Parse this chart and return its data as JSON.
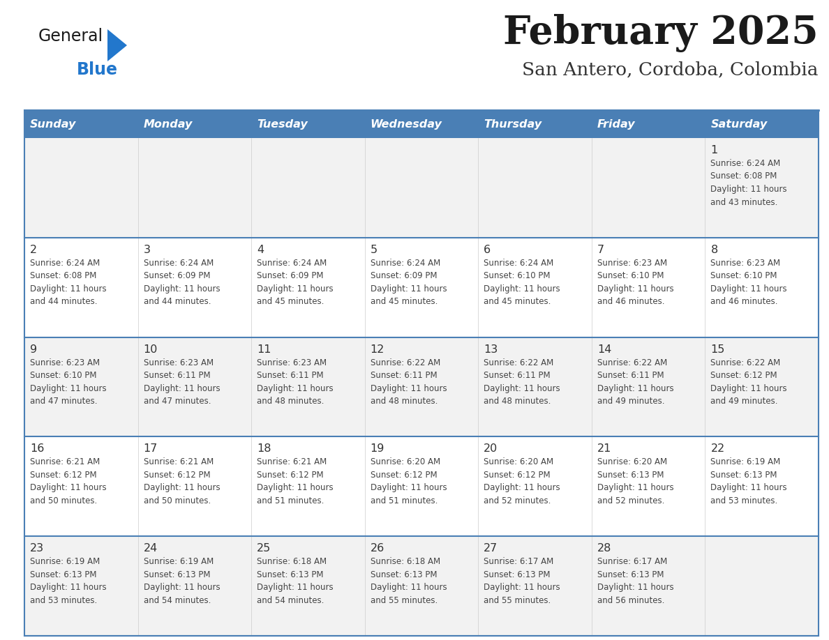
{
  "title": "February 2025",
  "subtitle": "San Antero, Cordoba, Colombia",
  "days_of_week": [
    "Sunday",
    "Monday",
    "Tuesday",
    "Wednesday",
    "Thursday",
    "Friday",
    "Saturday"
  ],
  "header_bg": "#4a7fb5",
  "header_text": "#ffffff",
  "row_bg_light": "#f2f2f2",
  "row_bg_white": "#ffffff",
  "cell_border_color": "#4a7fb5",
  "row_divider_color": "#4a7fb5",
  "day_num_color": "#333333",
  "info_text_color": "#444444",
  "title_color": "#1a1a1a",
  "subtitle_color": "#333333",
  "logo_general_color": "#1a1a1a",
  "logo_blue_color": "#2277cc",
  "logo_triangle_color": "#2277cc",
  "weeks": [
    [
      {
        "day": null,
        "info": null
      },
      {
        "day": null,
        "info": null
      },
      {
        "day": null,
        "info": null
      },
      {
        "day": null,
        "info": null
      },
      {
        "day": null,
        "info": null
      },
      {
        "day": null,
        "info": null
      },
      {
        "day": 1,
        "info": "Sunrise: 6:24 AM\nSunset: 6:08 PM\nDaylight: 11 hours\nand 43 minutes."
      }
    ],
    [
      {
        "day": 2,
        "info": "Sunrise: 6:24 AM\nSunset: 6:08 PM\nDaylight: 11 hours\nand 44 minutes."
      },
      {
        "day": 3,
        "info": "Sunrise: 6:24 AM\nSunset: 6:09 PM\nDaylight: 11 hours\nand 44 minutes."
      },
      {
        "day": 4,
        "info": "Sunrise: 6:24 AM\nSunset: 6:09 PM\nDaylight: 11 hours\nand 45 minutes."
      },
      {
        "day": 5,
        "info": "Sunrise: 6:24 AM\nSunset: 6:09 PM\nDaylight: 11 hours\nand 45 minutes."
      },
      {
        "day": 6,
        "info": "Sunrise: 6:24 AM\nSunset: 6:10 PM\nDaylight: 11 hours\nand 45 minutes."
      },
      {
        "day": 7,
        "info": "Sunrise: 6:23 AM\nSunset: 6:10 PM\nDaylight: 11 hours\nand 46 minutes."
      },
      {
        "day": 8,
        "info": "Sunrise: 6:23 AM\nSunset: 6:10 PM\nDaylight: 11 hours\nand 46 minutes."
      }
    ],
    [
      {
        "day": 9,
        "info": "Sunrise: 6:23 AM\nSunset: 6:10 PM\nDaylight: 11 hours\nand 47 minutes."
      },
      {
        "day": 10,
        "info": "Sunrise: 6:23 AM\nSunset: 6:11 PM\nDaylight: 11 hours\nand 47 minutes."
      },
      {
        "day": 11,
        "info": "Sunrise: 6:23 AM\nSunset: 6:11 PM\nDaylight: 11 hours\nand 48 minutes."
      },
      {
        "day": 12,
        "info": "Sunrise: 6:22 AM\nSunset: 6:11 PM\nDaylight: 11 hours\nand 48 minutes."
      },
      {
        "day": 13,
        "info": "Sunrise: 6:22 AM\nSunset: 6:11 PM\nDaylight: 11 hours\nand 48 minutes."
      },
      {
        "day": 14,
        "info": "Sunrise: 6:22 AM\nSunset: 6:11 PM\nDaylight: 11 hours\nand 49 minutes."
      },
      {
        "day": 15,
        "info": "Sunrise: 6:22 AM\nSunset: 6:12 PM\nDaylight: 11 hours\nand 49 minutes."
      }
    ],
    [
      {
        "day": 16,
        "info": "Sunrise: 6:21 AM\nSunset: 6:12 PM\nDaylight: 11 hours\nand 50 minutes."
      },
      {
        "day": 17,
        "info": "Sunrise: 6:21 AM\nSunset: 6:12 PM\nDaylight: 11 hours\nand 50 minutes."
      },
      {
        "day": 18,
        "info": "Sunrise: 6:21 AM\nSunset: 6:12 PM\nDaylight: 11 hours\nand 51 minutes."
      },
      {
        "day": 19,
        "info": "Sunrise: 6:20 AM\nSunset: 6:12 PM\nDaylight: 11 hours\nand 51 minutes."
      },
      {
        "day": 20,
        "info": "Sunrise: 6:20 AM\nSunset: 6:12 PM\nDaylight: 11 hours\nand 52 minutes."
      },
      {
        "day": 21,
        "info": "Sunrise: 6:20 AM\nSunset: 6:13 PM\nDaylight: 11 hours\nand 52 minutes."
      },
      {
        "day": 22,
        "info": "Sunrise: 6:19 AM\nSunset: 6:13 PM\nDaylight: 11 hours\nand 53 minutes."
      }
    ],
    [
      {
        "day": 23,
        "info": "Sunrise: 6:19 AM\nSunset: 6:13 PM\nDaylight: 11 hours\nand 53 minutes."
      },
      {
        "day": 24,
        "info": "Sunrise: 6:19 AM\nSunset: 6:13 PM\nDaylight: 11 hours\nand 54 minutes."
      },
      {
        "day": 25,
        "info": "Sunrise: 6:18 AM\nSunset: 6:13 PM\nDaylight: 11 hours\nand 54 minutes."
      },
      {
        "day": 26,
        "info": "Sunrise: 6:18 AM\nSunset: 6:13 PM\nDaylight: 11 hours\nand 55 minutes."
      },
      {
        "day": 27,
        "info": "Sunrise: 6:17 AM\nSunset: 6:13 PM\nDaylight: 11 hours\nand 55 minutes."
      },
      {
        "day": 28,
        "info": "Sunrise: 6:17 AM\nSunset: 6:13 PM\nDaylight: 11 hours\nand 56 minutes."
      },
      {
        "day": null,
        "info": null
      }
    ]
  ],
  "figsize": [
    11.88,
    9.18
  ],
  "dpi": 100
}
